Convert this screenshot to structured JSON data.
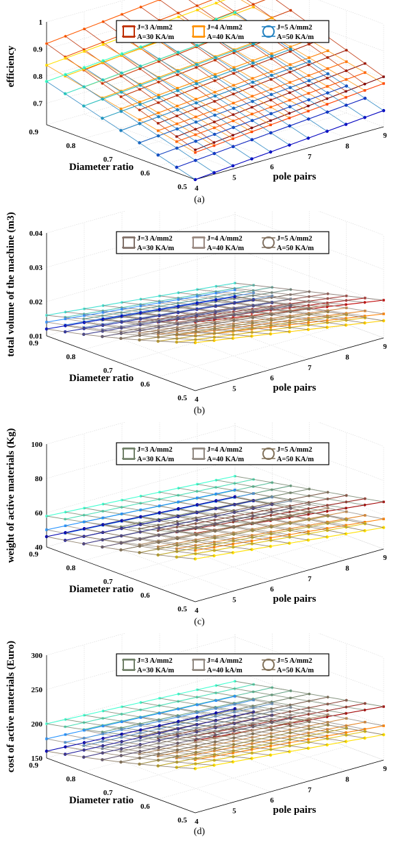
{
  "chart_data": [
    {
      "type": "surface3d",
      "caption": "(a)",
      "zlabel": "efficiency",
      "xlabel": "pole pairs",
      "ylabel": "Diameter ratio",
      "xticks": [
        "4",
        "5",
        "6",
        "7",
        "8",
        "9"
      ],
      "yticks": [
        "0.9",
        "0.8",
        "0.7",
        "0.6",
        "0.5"
      ],
      "zticks": [
        "0.7",
        "0.8",
        "0.9",
        "1"
      ],
      "zlim": [
        0.62,
        1.0
      ],
      "grid": true,
      "legend_position": "top",
      "series": [
        {
          "line1": "J=3 A/mm2",
          "line2": "A=30 KA/m",
          "marker": "star",
          "color_start": "#7a0000",
          "color_end": "#ff5a00",
          "z_front": 0.73,
          "z_back": 0.92,
          "pole_slope": 0.015,
          "dia_curve": 0.0
        },
        {
          "line1": "J=4 A/mm2",
          "line2": "A=40 KA/m",
          "marker": "square",
          "color_start": "#ff4000",
          "color_end": "#ffe000",
          "z_front": 0.72,
          "z_back": 0.84,
          "pole_slope": 0.012,
          "dia_curve": 0.0
        },
        {
          "line1": "J=5 A/mm2",
          "line2": "A=50 KA/m",
          "marker": "circle",
          "color_start": "#0000c0",
          "color_end": "#40ffc0",
          "z_front": 0.62,
          "z_back": 0.78,
          "pole_slope": 0.012,
          "dia_curve": 0.0
        }
      ]
    },
    {
      "type": "surface3d",
      "caption": "(b)",
      "zlabel": "total volume of the machine (m3)",
      "xlabel": "pole pairs",
      "ylabel": "Diameter ratio",
      "xticks": [
        "4",
        "5",
        "6",
        "7",
        "8",
        "9"
      ],
      "yticks": [
        "0.9",
        "0.8",
        "0.7",
        "0.6",
        "0.5"
      ],
      "zticks": [
        "0.01",
        "0.02",
        "0.03",
        "0.04"
      ],
      "zlim": [
        0.01,
        0.04
      ],
      "grid": true,
      "legend_position": "top",
      "series": [
        {
          "line1": "J=3 A/mm2",
          "line2": "A=30 KA/m",
          "marker": "star",
          "color_start": "#c00000",
          "color_end": "#40e0d0",
          "z_front": 0.027,
          "z_back": 0.016,
          "pole_slope": -0.0012,
          "dia_curve": 0.006
        },
        {
          "line1": "J=4 A/mm2",
          "line2": "A=40 KA/m",
          "marker": "square",
          "color_start": "#ff8000",
          "color_end": "#3090ff",
          "z_front": 0.023,
          "z_back": 0.014,
          "pole_slope": -0.0012,
          "dia_curve": 0.006
        },
        {
          "line1": "J=5 A/mm2",
          "line2": "A=50 KA/m",
          "marker": "circle",
          "color_start": "#ffd000",
          "color_end": "#0010c0",
          "z_front": 0.021,
          "z_back": 0.012,
          "pole_slope": -0.0012,
          "dia_curve": 0.006
        }
      ]
    },
    {
      "type": "surface3d",
      "caption": "(c)",
      "zlabel": "weight of active materials (Kg)",
      "xlabel": "pole pairs",
      "ylabel": "Diameter ratio",
      "xticks": [
        "4",
        "5",
        "6",
        "7",
        "8",
        "9"
      ],
      "yticks": [
        "0.9",
        "0.8",
        "0.7",
        "0.6",
        "0.5"
      ],
      "zticks": [
        "40",
        "60",
        "80",
        "100"
      ],
      "zlim": [
        40,
        100
      ],
      "grid": true,
      "legend_position": "top",
      "series": [
        {
          "line1": "J=3 A/mm2",
          "line2": "A=30 KA/m",
          "marker": "star",
          "color_start": "#a00000",
          "color_end": "#40ffd0",
          "z_front": 75,
          "z_back": 58,
          "pole_slope": -1.5,
          "dia_curve": 10
        },
        {
          "line1": "J=4 A/mm2",
          "line2": "A=40 KA/m",
          "marker": "square",
          "color_start": "#ff8000",
          "color_end": "#2090ff",
          "z_front": 65,
          "z_back": 50,
          "pole_slope": -1.5,
          "dia_curve": 10
        },
        {
          "line1": "J=5 A/mm2",
          "line2": "A=50 KA/m",
          "marker": "circle",
          "color_start": "#ffe000",
          "color_end": "#0000b0",
          "z_front": 60,
          "z_back": 46,
          "pole_slope": -1.5,
          "dia_curve": 10
        }
      ]
    },
    {
      "type": "surface3d",
      "caption": "(d)",
      "zlabel": "cost of active materials (Euro)",
      "xlabel": "pole pairs",
      "ylabel": "Diameter ratio",
      "xticks": [
        "4",
        "5",
        "6",
        "7",
        "8",
        "9"
      ],
      "yticks": [
        "0.9",
        "0.8",
        "0.7",
        "0.6",
        "0.5"
      ],
      "zticks": [
        "150",
        "200",
        "250",
        "300"
      ],
      "zlim": [
        150,
        300
      ],
      "grid": true,
      "legend_position": "top",
      "series": [
        {
          "line1": "J=3 A/mm2",
          "line2": "A=30 KA/m",
          "marker": "star",
          "color_start": "#a00000",
          "color_end": "#40ffd0",
          "z_front": 243,
          "z_back": 200,
          "pole_slope": -3.0,
          "dia_curve": 25
        },
        {
          "line1": "J=4 A/mm2",
          "line2": "A=40 kA/m",
          "marker": "square",
          "color_start": "#ff8000",
          "color_end": "#2090ff",
          "z_front": 215,
          "z_back": 178,
          "pole_slope": -3.0,
          "dia_curve": 25
        },
        {
          "line1": "J=5 A/mm2",
          "line2": "A=50 KA/m",
          "marker": "circle",
          "color_start": "#ffe000",
          "color_end": "#0000b0",
          "z_front": 202,
          "z_back": 160,
          "pole_slope": -3.0,
          "dia_curve": 25
        }
      ]
    }
  ]
}
